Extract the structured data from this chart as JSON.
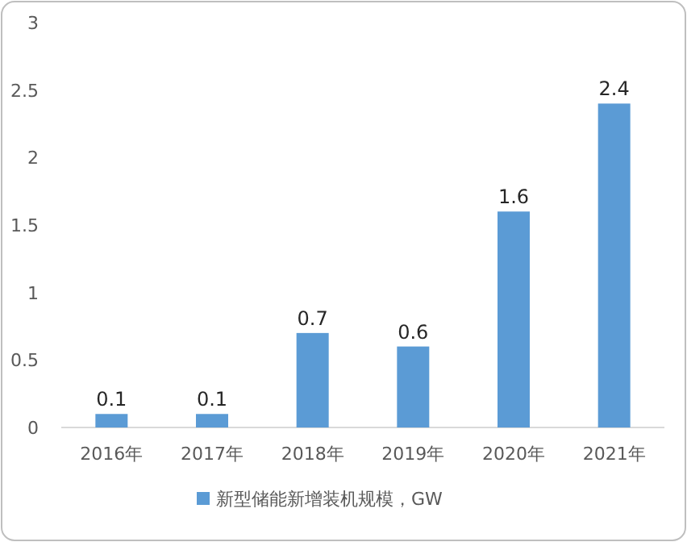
{
  "chart_data": {
    "type": "bar",
    "categories": [
      "2016年",
      "2017年",
      "2018年",
      "2019年",
      "2020年",
      "2021年"
    ],
    "series": [
      {
        "name": "新型储能新增装机规模，GW",
        "color": "#5b9bd5",
        "values": [
          0.1,
          0.1,
          0.7,
          0.6,
          1.6,
          2.4
        ]
      }
    ],
    "ylim": [
      0,
      3
    ],
    "yticks": [
      0,
      0.5,
      1,
      1.5,
      2,
      2.5,
      3
    ],
    "data_labels": true,
    "legend": "bottom"
  }
}
